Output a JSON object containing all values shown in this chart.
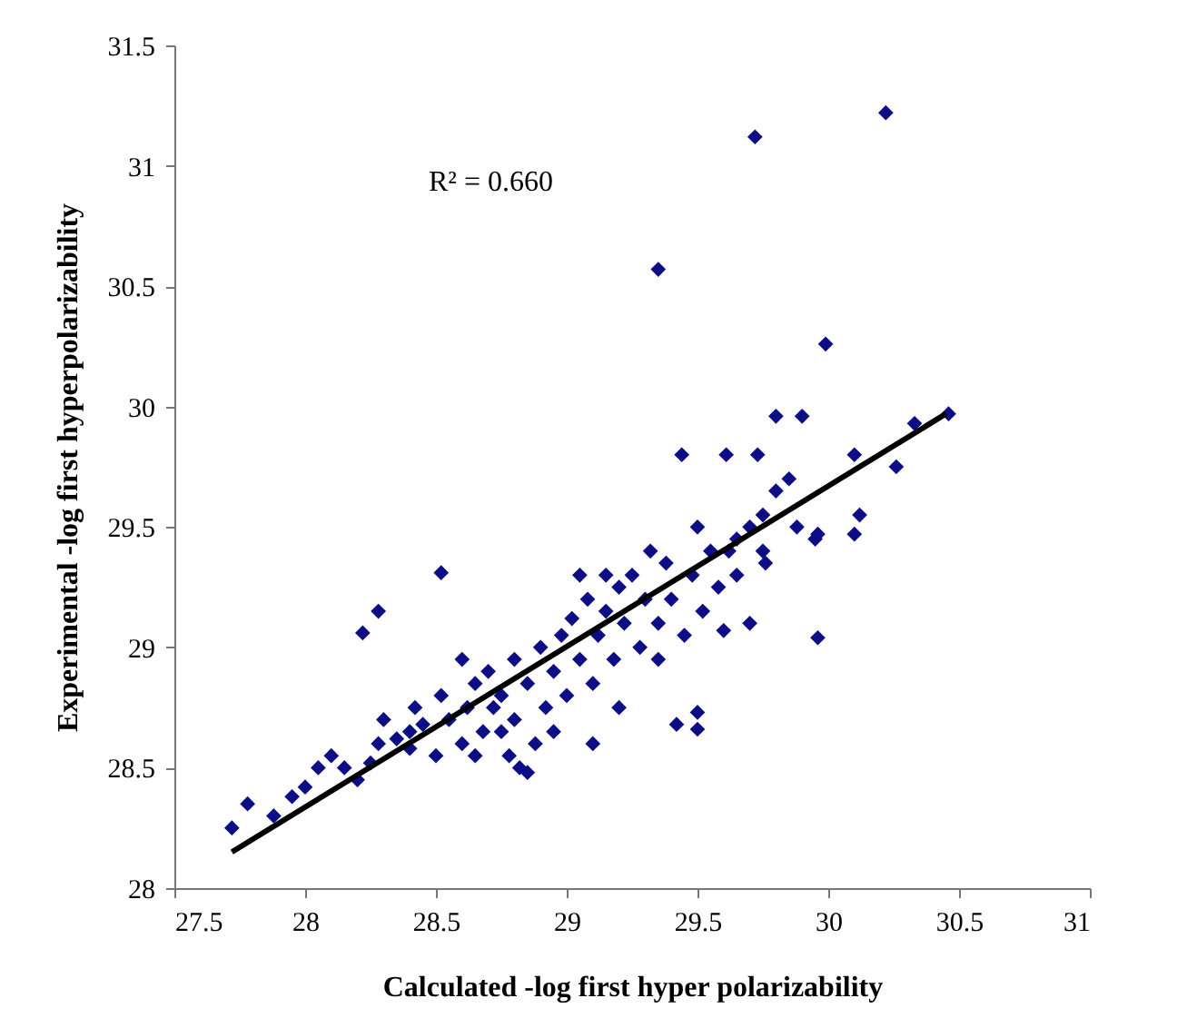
{
  "chart_data": {
    "type": "scatter",
    "xlabel": "Calculated -log first hyper polarizability",
    "ylabel": "Experimental -log first hyperpolarizability",
    "annotations": [
      "R² = 0.660"
    ],
    "xlim": [
      27.5,
      31
    ],
    "xticks": [
      27.5,
      28,
      28.5,
      29,
      29.5,
      30,
      30.5,
      31
    ],
    "ylim": [
      28,
      31.5
    ],
    "yticks": [
      28,
      28.5,
      29,
      29.5,
      30,
      30.5,
      31,
      31.5
    ],
    "grid": false,
    "marker": "diamond",
    "series": [
      {
        "color": "#0d0d85",
        "x": [
          29.72,
          30.22,
          29.35,
          29.99,
          28.52,
          28.28,
          28.22,
          29.44,
          29.61,
          29.73,
          29.8,
          29.9,
          30.1,
          30.33,
          30.46,
          30.26,
          30.12,
          30.1,
          29.96,
          29.96,
          29.7,
          29.6,
          29.65,
          29.76,
          29.88,
          29.95,
          29.42,
          29.5,
          29.5,
          29.1,
          29.2,
          29.35,
          27.72,
          27.78,
          27.88,
          27.95,
          28.0,
          28.05,
          28.1,
          28.15,
          28.2,
          28.25,
          28.28,
          28.3,
          28.35,
          28.4,
          28.42,
          28.45,
          28.5,
          28.52,
          28.55,
          28.6,
          28.62,
          28.65,
          28.68,
          28.7,
          28.72,
          28.75,
          28.78,
          28.8,
          28.8,
          28.82,
          28.85,
          28.88,
          28.9,
          28.92,
          28.95,
          28.98,
          29.0,
          29.02,
          29.05,
          29.08,
          29.1,
          29.12,
          29.15,
          29.18,
          29.2,
          29.22,
          29.25,
          29.28,
          29.3,
          29.32,
          29.35,
          29.38,
          29.4,
          29.45,
          29.48,
          29.5,
          29.52,
          29.55,
          29.58,
          29.62,
          29.65,
          29.7,
          29.75,
          29.8,
          29.85,
          29.75,
          28.6,
          28.75,
          28.85,
          28.95,
          28.4,
          28.65,
          29.15,
          29.05
        ],
        "values": [
          31.12,
          31.22,
          30.57,
          30.26,
          29.31,
          29.15,
          29.06,
          29.8,
          29.8,
          29.8,
          29.96,
          29.96,
          29.8,
          29.93,
          29.97,
          29.75,
          29.55,
          29.47,
          29.47,
          29.04,
          29.1,
          29.07,
          29.45,
          29.35,
          29.5,
          29.45,
          28.68,
          28.73,
          28.66,
          28.6,
          28.75,
          28.95,
          28.25,
          28.35,
          28.3,
          28.38,
          28.42,
          28.5,
          28.55,
          28.5,
          28.45,
          28.52,
          28.6,
          28.7,
          28.62,
          28.65,
          28.75,
          28.68,
          28.55,
          28.8,
          28.7,
          28.6,
          28.75,
          28.85,
          28.65,
          28.9,
          28.75,
          28.8,
          28.55,
          28.95,
          28.7,
          28.5,
          28.85,
          28.6,
          29.0,
          28.75,
          28.9,
          29.05,
          28.8,
          29.12,
          28.95,
          29.2,
          28.85,
          29.05,
          29.15,
          28.95,
          29.25,
          29.1,
          29.3,
          29.0,
          29.2,
          29.4,
          29.1,
          29.35,
          29.2,
          29.05,
          29.3,
          29.5,
          29.15,
          29.4,
          29.25,
          29.4,
          29.3,
          29.5,
          29.55,
          29.65,
          29.7,
          29.4,
          28.95,
          28.65,
          28.48,
          28.65,
          28.58,
          28.55,
          29.3,
          29.3
        ]
      },
      {
        "type": "line",
        "marker": "none",
        "color": "#000000",
        "x": [
          27.72,
          30.45
        ],
        "values": [
          28.15,
          29.97
        ]
      }
    ]
  }
}
